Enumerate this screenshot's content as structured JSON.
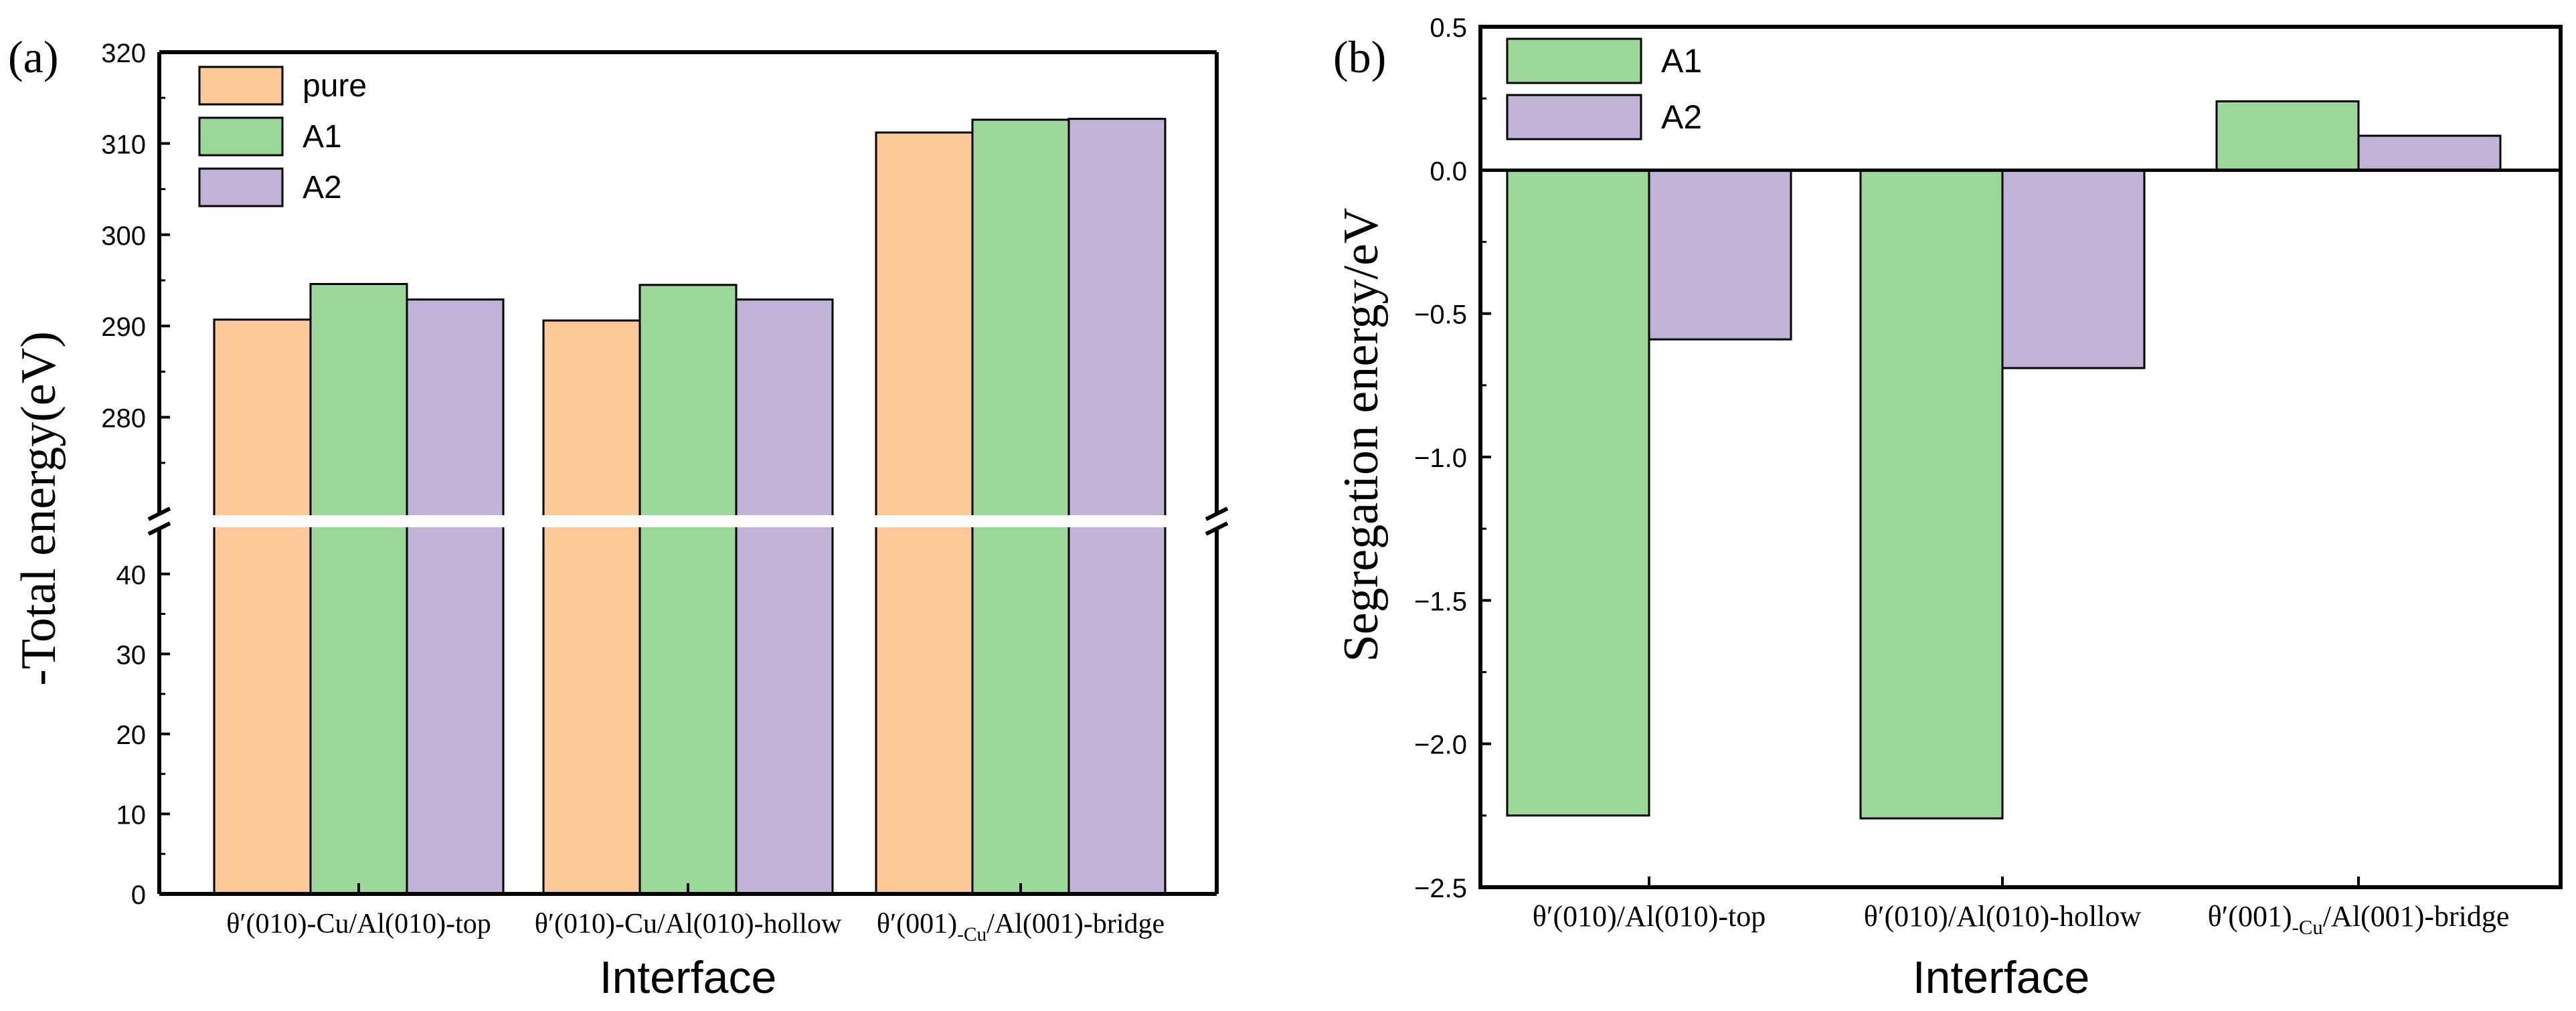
{
  "colors": {
    "pure": "#FDC898",
    "A1": "#9DD89B",
    "A2": "#C1B2D7"
  },
  "chart_data": [
    {
      "panel_label": "(a)",
      "type": "bar",
      "title": "",
      "xlabel": "Interface",
      "ylabel": "-Total energy(eV)",
      "categories": [
        {
          "pre": "θ′(010)-Cu/Al(010)-top",
          "sub": "",
          "post": ""
        },
        {
          "pre": "θ′(010)-Cu/Al(010)-hollow",
          "sub": "",
          "post": ""
        },
        {
          "pre": "θ′(001)",
          "sub": "-Cu",
          "post": "/Al(001)-bridge"
        }
      ],
      "series": [
        {
          "name": "pure",
          "values": [
            290.7,
            290.6,
            311.2
          ]
        },
        {
          "name": "A1",
          "values": [
            294.6,
            294.5,
            312.6
          ]
        },
        {
          "name": "A2",
          "values": [
            292.9,
            292.9,
            312.7
          ]
        }
      ],
      "axis_break": [
        45,
        270
      ],
      "ylim_lower": [
        0,
        45
      ],
      "ylim_upper": [
        270,
        320
      ],
      "yticks_lower": [
        "0",
        "10",
        "20",
        "30",
        "40"
      ],
      "yticks_upper": [
        "280",
        "290",
        "300",
        "310",
        "320"
      ],
      "legend_position": "top-left"
    },
    {
      "panel_label": "(b)",
      "type": "bar",
      "title": "",
      "xlabel": "Interface",
      "ylabel": "Segregation energy/eV",
      "categories": [
        {
          "pre": "θ′(010)/Al(010)-top",
          "sub": "",
          "post": ""
        },
        {
          "pre": "θ′(010)/Al(010)-hollow",
          "sub": "",
          "post": ""
        },
        {
          "pre": "θ′(001)",
          "sub": "-Cu",
          "post": "/Al(001)-bridge"
        }
      ],
      "series": [
        {
          "name": "A1",
          "values": [
            -2.25,
            -2.26,
            0.24
          ]
        },
        {
          "name": "A2",
          "values": [
            -0.59,
            -0.69,
            0.12
          ]
        }
      ],
      "ylim": [
        -2.5,
        0.5
      ],
      "yticks": [
        "0.5",
        "0.0",
        "-0.5",
        "-1.0",
        "-1.5",
        "-2.0",
        "-2.5"
      ],
      "legend_position": "top-left"
    }
  ]
}
